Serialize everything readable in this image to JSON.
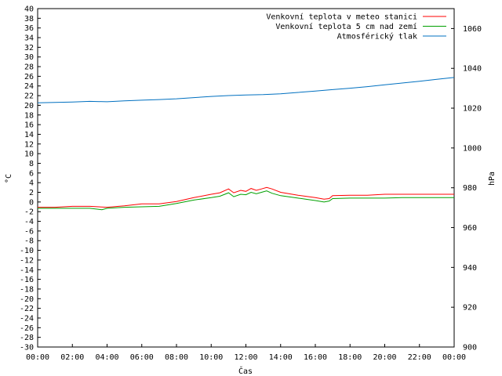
{
  "chart_data": {
    "type": "line",
    "title": "",
    "xlabel": "Čas",
    "ylabel": "°C",
    "y2label": "hPa",
    "xlim": [
      0,
      24
    ],
    "ylim": [
      -30,
      40
    ],
    "y2lim": [
      900,
      1070
    ],
    "x_ticks": [
      "00:00",
      "02:00",
      "04:00",
      "06:00",
      "08:00",
      "10:00",
      "12:00",
      "14:00",
      "16:00",
      "18:00",
      "20:00",
      "22:00",
      "00:00"
    ],
    "y_ticks": [
      40,
      38,
      36,
      34,
      32,
      30,
      28,
      26,
      24,
      22,
      20,
      18,
      16,
      14,
      12,
      10,
      8,
      6,
      4,
      2,
      0,
      -2,
      -4,
      -6,
      -8,
      -10,
      -12,
      -14,
      -16,
      -18,
      -20,
      -22,
      -24,
      -26,
      -28,
      -30
    ],
    "y2_ticks": [
      1060,
      1040,
      1020,
      1000,
      980,
      960,
      940,
      920,
      900
    ],
    "grid": false,
    "legend_position": "top-right",
    "series": [
      {
        "name": "Venkovní teplota v meteo stanici",
        "color": "#ff0000",
        "axis": "y",
        "x": [
          0,
          1,
          2,
          3,
          4,
          5,
          6,
          7,
          8,
          9,
          10,
          10.5,
          11,
          11.3,
          11.7,
          12,
          12.3,
          12.6,
          12.9,
          13.2,
          13.5,
          14,
          15,
          16,
          16.5,
          16.8,
          17,
          18,
          19,
          20,
          21,
          22,
          23,
          24
        ],
        "y": [
          -1.1,
          -1.1,
          -0.9,
          -0.9,
          -1.1,
          -0.8,
          -0.4,
          -0.4,
          0.1,
          0.9,
          1.6,
          1.9,
          2.7,
          1.9,
          2.4,
          2.2,
          2.8,
          2.4,
          2.7,
          3.0,
          2.7,
          2.0,
          1.4,
          0.9,
          0.6,
          0.7,
          1.3,
          1.4,
          1.4,
          1.6,
          1.6,
          1.6,
          1.6,
          1.6
        ]
      },
      {
        "name": "Venkovní teplota 5 cm nad zemí",
        "color": "#00a000",
        "axis": "y",
        "x": [
          0,
          1,
          2,
          3,
          3.7,
          4,
          5,
          6,
          7,
          8,
          9,
          10,
          10.5,
          11,
          11.3,
          11.7,
          12,
          12.3,
          12.6,
          12.9,
          13.2,
          13.5,
          14,
          15,
          16,
          16.5,
          16.8,
          17,
          18,
          19,
          20,
          21,
          22,
          23,
          24
        ],
        "y": [
          -1.3,
          -1.3,
          -1.3,
          -1.3,
          -1.6,
          -1.3,
          -1.1,
          -1.0,
          -0.9,
          -0.3,
          0.4,
          0.9,
          1.2,
          1.9,
          1.1,
          1.6,
          1.5,
          2.0,
          1.7,
          2.0,
          2.3,
          1.8,
          1.3,
          0.8,
          0.3,
          0.0,
          0.2,
          0.7,
          0.8,
          0.8,
          0.8,
          0.9,
          0.9,
          0.9,
          0.9
        ]
      },
      {
        "name": "Atmosférický tlak",
        "color": "#0070c0",
        "axis": "y2",
        "x": [
          0,
          1,
          2,
          3,
          4,
          5,
          6,
          7,
          8,
          9,
          10,
          11,
          12,
          13,
          14,
          15,
          16,
          17,
          18,
          19,
          20,
          21,
          22,
          23,
          24
        ],
        "y": [
          1022.7,
          1022.9,
          1023.1,
          1023.4,
          1023.2,
          1023.7,
          1024.0,
          1024.3,
          1024.7,
          1025.3,
          1025.9,
          1026.3,
          1026.6,
          1026.8,
          1027.2,
          1027.9,
          1028.6,
          1029.3,
          1030.0,
          1030.8,
          1031.7,
          1032.6,
          1033.5,
          1034.5,
          1035.4
        ]
      }
    ]
  }
}
